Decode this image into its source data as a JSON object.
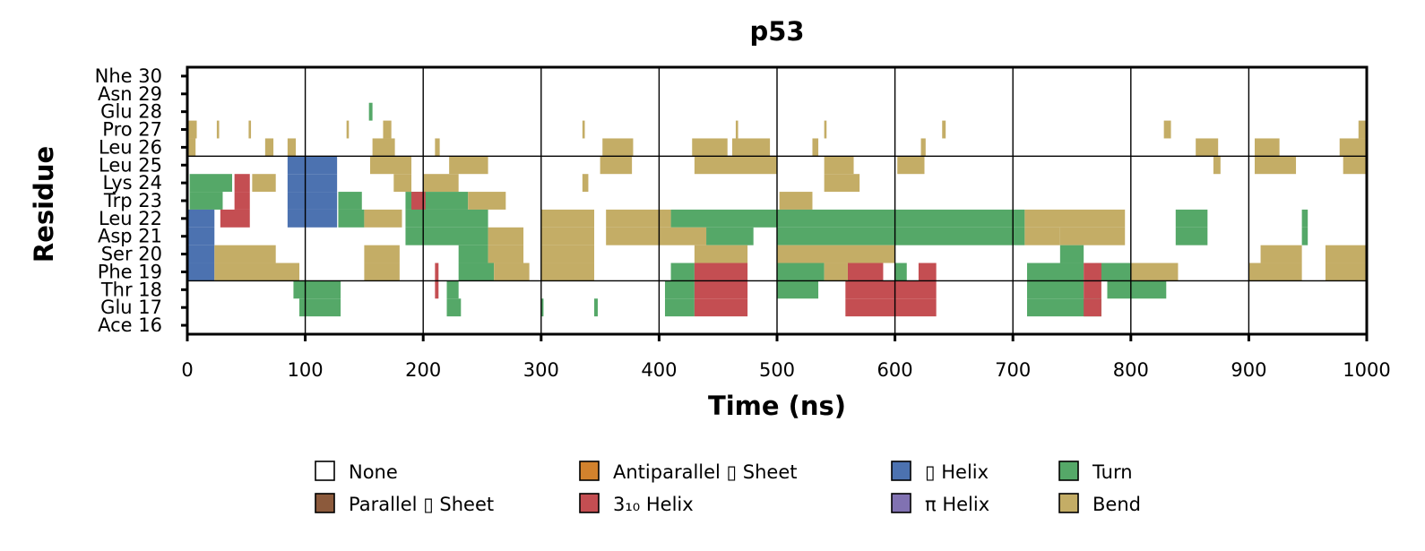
{
  "chart_data": {
    "type": "heatmap",
    "title": "p53",
    "xlabel": "Time (ns)",
    "ylabel": "Residue",
    "xlim": [
      0,
      1000
    ],
    "xticks": [
      "0",
      "100",
      "200",
      "300",
      "400",
      "500",
      "600",
      "700",
      "800",
      "900",
      "1000"
    ],
    "residues": [
      "Ace 16",
      "Glu 17",
      "Thr 18",
      "Phe 19",
      "Ser 20",
      "Asp 21",
      "Leu 22",
      "Trp 23",
      "Lys 24",
      "Leu 25",
      "Leu 26",
      "Pro 27",
      "Glu 28",
      "Asn 29",
      "Nhe 30"
    ],
    "grid": true,
    "legend_position": "bottom",
    "legend": [
      {
        "key": "none",
        "label": "None",
        "color": "#ffffff"
      },
      {
        "key": "parallel",
        "label": "Parallel ▯ Sheet",
        "color": "#8c5a3c"
      },
      {
        "key": "antiparallel",
        "label": "Antiparallel ▯ Sheet",
        "color": "#d2822d"
      },
      {
        "key": "h310",
        "label": "3₁₀ Helix",
        "color": "#c44e52"
      },
      {
        "key": "alpha",
        "label": "▯ Helix",
        "color": "#4c72b0"
      },
      {
        "key": "pi",
        "label": "π Helix",
        "color": "#8172b2"
      },
      {
        "key": "turn",
        "label": "Turn",
        "color": "#55a868"
      },
      {
        "key": "bend",
        "label": "Bend",
        "color": "#c4ad66"
      }
    ],
    "segments": [
      {
        "residue": "Pro 27",
        "ss": "bend",
        "x": [
          [
            0,
            8
          ],
          [
            25,
            27
          ],
          [
            52,
            54
          ],
          [
            135,
            137
          ],
          [
            166,
            173
          ],
          [
            335,
            337
          ],
          [
            465,
            467
          ],
          [
            540,
            542
          ],
          [
            640,
            643
          ],
          [
            828,
            834
          ],
          [
            993,
            999
          ]
        ]
      },
      {
        "residue": "Glu 28",
        "ss": "turn",
        "x": [
          [
            154,
            157
          ]
        ]
      },
      {
        "residue": "Leu 26",
        "ss": "bend",
        "x": [
          [
            0,
            7
          ],
          [
            66,
            73
          ],
          [
            85,
            92
          ],
          [
            157,
            176
          ],
          [
            210,
            214
          ],
          [
            352,
            378
          ],
          [
            428,
            458
          ],
          [
            462,
            494
          ],
          [
            530,
            535
          ],
          [
            622,
            626
          ],
          [
            855,
            874
          ],
          [
            905,
            926
          ],
          [
            977,
            1000
          ]
        ]
      },
      {
        "residue": "Leu 25",
        "ss": "bend",
        "x": [
          [
            155,
            190
          ],
          [
            222,
            255
          ],
          [
            350,
            377
          ],
          [
            430,
            500
          ],
          [
            540,
            565
          ],
          [
            602,
            625
          ],
          [
            870,
            876
          ],
          [
            905,
            940
          ],
          [
            980,
            1000
          ]
        ]
      },
      {
        "residue": "Leu 25",
        "ss": "alpha",
        "x": [
          [
            85,
            127
          ]
        ]
      },
      {
        "residue": "Lys 24",
        "ss": "turn",
        "x": [
          [
            2,
            38
          ]
        ]
      },
      {
        "residue": "Lys 24",
        "ss": "h310",
        "x": [
          [
            40,
            53
          ]
        ]
      },
      {
        "residue": "Lys 24",
        "ss": "alpha",
        "x": [
          [
            85,
            127
          ]
        ]
      },
      {
        "residue": "Lys 24",
        "ss": "bend",
        "x": [
          [
            55,
            75
          ],
          [
            175,
            190
          ],
          [
            200,
            230
          ],
          [
            335,
            340
          ],
          [
            540,
            570
          ]
        ]
      },
      {
        "residue": "Trp 23",
        "ss": "turn",
        "x": [
          [
            2,
            30
          ],
          [
            128,
            148
          ],
          [
            185,
            238
          ]
        ]
      },
      {
        "residue": "Trp 23",
        "ss": "h310",
        "x": [
          [
            40,
            53
          ],
          [
            190,
            202
          ]
        ]
      },
      {
        "residue": "Trp 23",
        "ss": "alpha",
        "x": [
          [
            85,
            127
          ]
        ]
      },
      {
        "residue": "Trp 23",
        "ss": "bend",
        "x": [
          [
            238,
            270
          ],
          [
            502,
            530
          ]
        ]
      },
      {
        "residue": "Leu 22",
        "ss": "alpha",
        "x": [
          [
            0,
            23
          ],
          [
            85,
            127
          ]
        ]
      },
      {
        "residue": "Leu 22",
        "ss": "h310",
        "x": [
          [
            28,
            53
          ]
        ]
      },
      {
        "residue": "Leu 22",
        "ss": "turn",
        "x": [
          [
            128,
            150
          ],
          [
            185,
            255
          ],
          [
            410,
            500
          ],
          [
            500,
            710
          ],
          [
            838,
            865
          ],
          [
            945,
            950
          ]
        ]
      },
      {
        "residue": "Leu 22",
        "ss": "bend",
        "x": [
          [
            150,
            182
          ],
          [
            300,
            345
          ],
          [
            355,
            410
          ],
          [
            710,
            795
          ]
        ]
      },
      {
        "residue": "Asp 21",
        "ss": "alpha",
        "x": [
          [
            0,
            23
          ]
        ]
      },
      {
        "residue": "Asp 21",
        "ss": "turn",
        "x": [
          [
            185,
            255
          ],
          [
            440,
            480
          ],
          [
            500,
            710
          ],
          [
            838,
            865
          ],
          [
            945,
            950
          ]
        ]
      },
      {
        "residue": "Asp 21",
        "ss": "bend",
        "x": [
          [
            255,
            285
          ],
          [
            300,
            345
          ],
          [
            355,
            440
          ],
          [
            710,
            740
          ],
          [
            740,
            795
          ]
        ]
      },
      {
        "residue": "Ser 20",
        "ss": "alpha",
        "x": [
          [
            0,
            23
          ]
        ]
      },
      {
        "residue": "Ser 20",
        "ss": "turn",
        "x": [
          [
            230,
            255
          ],
          [
            740,
            760
          ]
        ]
      },
      {
        "residue": "Ser 20",
        "ss": "bend",
        "x": [
          [
            23,
            75
          ],
          [
            150,
            180
          ],
          [
            255,
            285
          ],
          [
            300,
            345
          ],
          [
            430,
            475
          ],
          [
            500,
            600
          ],
          [
            910,
            945
          ],
          [
            965,
            1000
          ]
        ]
      },
      {
        "residue": "Phe 19",
        "ss": "alpha",
        "x": [
          [
            0,
            23
          ]
        ]
      },
      {
        "residue": "Phe 19",
        "ss": "turn",
        "x": [
          [
            230,
            260
          ],
          [
            410,
            430
          ],
          [
            500,
            540
          ],
          [
            600,
            610
          ],
          [
            712,
            760
          ],
          [
            770,
            800
          ]
        ]
      },
      {
        "residue": "Phe 19",
        "ss": "h310",
        "x": [
          [
            210,
            213
          ],
          [
            430,
            475
          ],
          [
            560,
            590
          ],
          [
            620,
            635
          ],
          [
            760,
            775
          ]
        ]
      },
      {
        "residue": "Phe 19",
        "ss": "bend",
        "x": [
          [
            23,
            95
          ],
          [
            150,
            180
          ],
          [
            260,
            290
          ],
          [
            300,
            345
          ],
          [
            540,
            560
          ],
          [
            800,
            840
          ],
          [
            900,
            945
          ],
          [
            965,
            1000
          ]
        ]
      },
      {
        "residue": "Thr 18",
        "ss": "turn",
        "x": [
          [
            90,
            130
          ],
          [
            220,
            230
          ],
          [
            405,
            430
          ],
          [
            500,
            535
          ],
          [
            712,
            760
          ],
          [
            780,
            830
          ]
        ]
      },
      {
        "residue": "Thr 18",
        "ss": "h310",
        "x": [
          [
            210,
            213
          ],
          [
            430,
            475
          ],
          [
            558,
            635
          ],
          [
            760,
            775
          ]
        ]
      },
      {
        "residue": "Glu 17",
        "ss": "turn",
        "x": [
          [
            95,
            130
          ],
          [
            220,
            232
          ],
          [
            300,
            302
          ],
          [
            345,
            348
          ],
          [
            405,
            430
          ],
          [
            712,
            775
          ]
        ]
      },
      {
        "residue": "Glu 17",
        "ss": "h310",
        "x": [
          [
            430,
            475
          ],
          [
            558,
            635
          ],
          [
            760,
            775
          ]
        ]
      }
    ]
  }
}
